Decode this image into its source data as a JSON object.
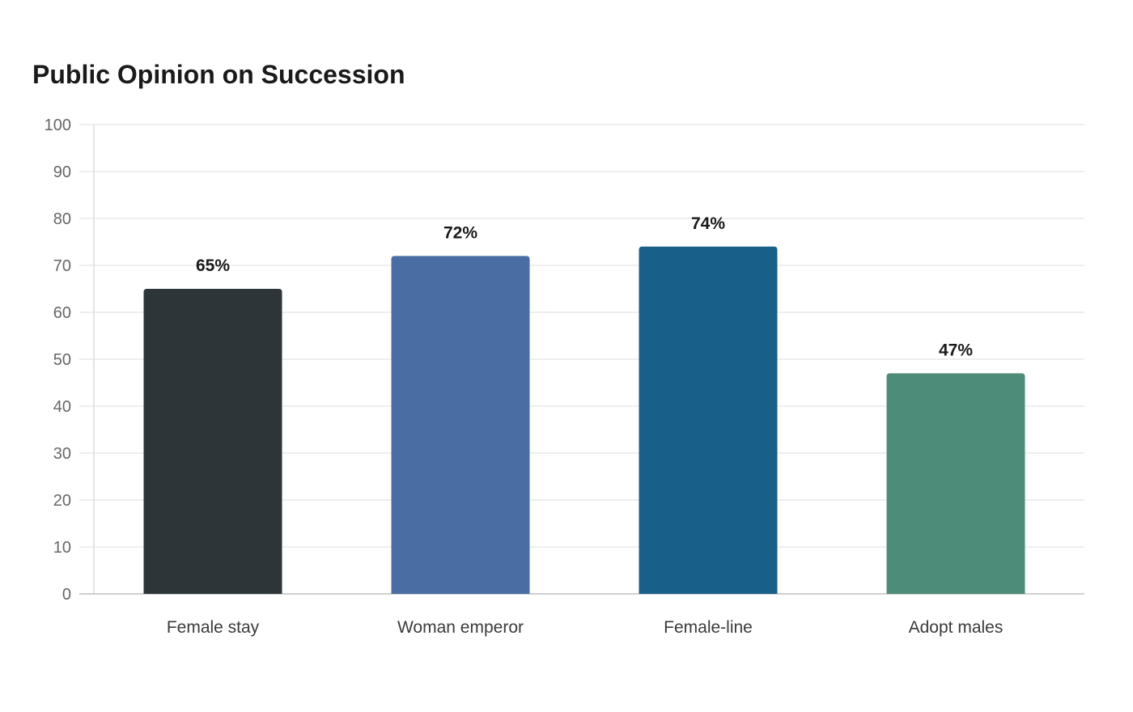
{
  "chart_data": {
    "type": "bar",
    "title": "Public Opinion on Succession",
    "categories": [
      "Female stay",
      "Woman emperor",
      "Female-line",
      "Adopt males"
    ],
    "values": [
      65,
      72,
      74,
      47
    ],
    "value_labels": [
      "65%",
      "72%",
      "74%",
      "47%"
    ],
    "colors": [
      "#2d3538",
      "#4a6ea3",
      "#186089",
      "#4e8c7a"
    ],
    "xlabel": "",
    "ylabel": "",
    "ylim": [
      0,
      100
    ],
    "yticks": [
      0,
      10,
      20,
      30,
      40,
      50,
      60,
      70,
      80,
      90,
      100
    ],
    "grid": true,
    "legend": "none"
  }
}
